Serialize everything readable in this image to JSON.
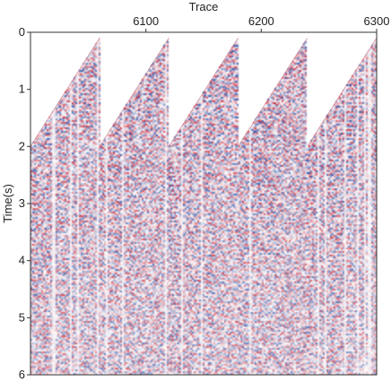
{
  "chart_data": {
    "type": "heatmap",
    "title": "",
    "xlabel": "Trace",
    "ylabel": "Time(s)",
    "xlim": [
      6000,
      6300
    ],
    "ylim": [
      0,
      6
    ],
    "x_ticks": [
      {
        "value": 6100,
        "label": "6100"
      },
      {
        "value": 6200,
        "label": "6200"
      },
      {
        "value": 6300,
        "label": "6300"
      }
    ],
    "y_ticks": [
      {
        "value": 0,
        "label": "0"
      },
      {
        "value": 1,
        "label": "1"
      },
      {
        "value": 2,
        "label": "2"
      },
      {
        "value": 3,
        "label": "3"
      },
      {
        "value": 4,
        "label": "4"
      },
      {
        "value": 5,
        "label": "5"
      },
      {
        "value": 6,
        "label": "6"
      }
    ],
    "x_axis_position": "top",
    "grid": false,
    "colormap": [
      "#1a3f9c",
      "#ffffff",
      "#c4162a"
    ],
    "shot_gathers": [
      {
        "first_trace": 6000,
        "last_trace": 6060,
        "first_break_start_s": 2.0,
        "first_break_end_s": 0.1
      },
      {
        "first_trace": 6060,
        "last_trace": 6120,
        "first_break_start_s": 2.0,
        "first_break_end_s": 0.1
      },
      {
        "first_trace": 6120,
        "last_trace": 6180,
        "first_break_start_s": 2.0,
        "first_break_end_s": 0.1
      },
      {
        "first_trace": 6180,
        "last_trace": 6240,
        "first_break_start_s": 2.0,
        "first_break_end_s": 0.1
      },
      {
        "first_trace": 6240,
        "last_trace": 6300,
        "first_break_start_s": 2.0,
        "first_break_end_s": 0.1
      }
    ]
  }
}
